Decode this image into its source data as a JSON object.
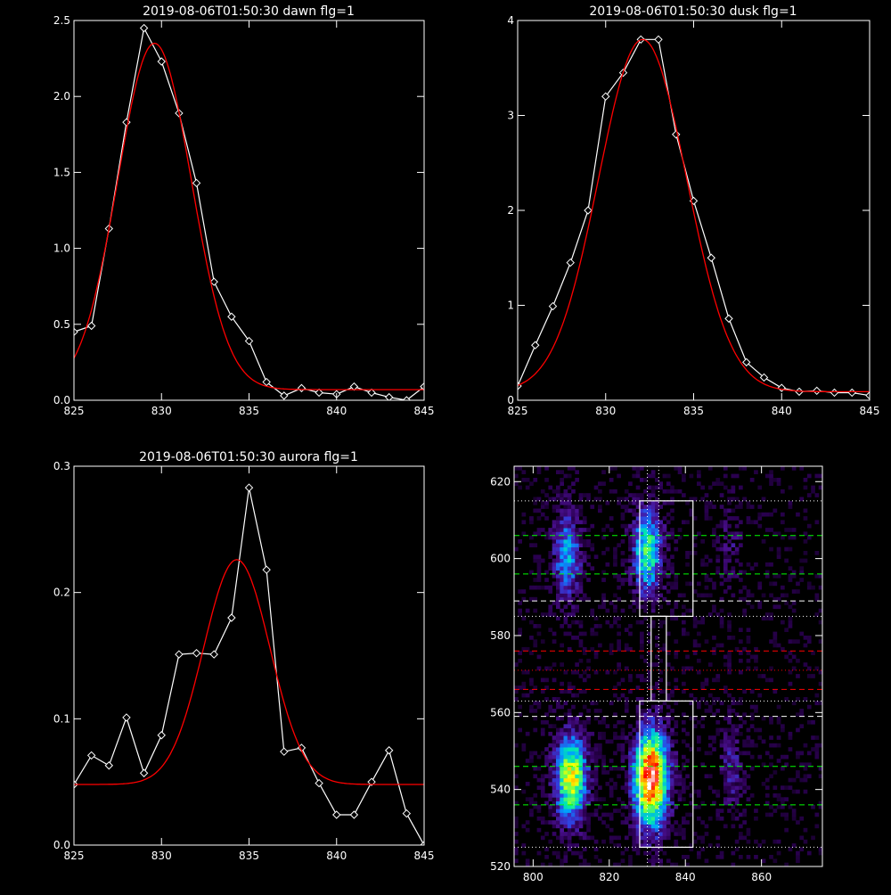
{
  "chart_data": [
    {
      "type": "line",
      "title": "2019-08-06T01:50:30 dawn flg=1",
      "xlim": [
        825,
        845
      ],
      "ylim": [
        0,
        2.5
      ],
      "x_ticks": [
        "825",
        "830",
        "835",
        "840",
        "845"
      ],
      "y_ticks": [
        "0.0",
        "0.5",
        "1.0",
        "1.5",
        "2.0",
        "2.5"
      ],
      "series": [
        {
          "role": "data",
          "color": "#ffffff",
          "marker": "diamond",
          "x": [
            825,
            826,
            827,
            828,
            829,
            830,
            831,
            832,
            833,
            834,
            835,
            836,
            837,
            838,
            839,
            840,
            841,
            842,
            843,
            844,
            845
          ],
          "y": [
            0.45,
            0.49,
            1.13,
            1.83,
            2.45,
            2.23,
            1.89,
            1.43,
            0.78,
            0.55,
            0.39,
            0.12,
            0.03,
            0.08,
            0.05,
            0.04,
            0.09,
            0.05,
            0.02,
            0.0,
            0.09
          ]
        },
        {
          "role": "fit",
          "color": "#ff0000",
          "gaussian": {
            "amp": 2.28,
            "center": 829.6,
            "sigma": 2.1,
            "offset": 0.07
          }
        }
      ]
    },
    {
      "type": "line",
      "title": "2019-08-06T01:50:30 dusk flg=1",
      "xlim": [
        825,
        845
      ],
      "ylim": [
        0,
        4
      ],
      "x_ticks": [
        "825",
        "830",
        "835",
        "840",
        "845"
      ],
      "y_ticks": [
        "0",
        "1",
        "2",
        "3",
        "4"
      ],
      "series": [
        {
          "role": "data",
          "color": "#ffffff",
          "marker": "diamond",
          "x": [
            825,
            826,
            827,
            828,
            829,
            830,
            831,
            832,
            833,
            834,
            835,
            836,
            837,
            838,
            839,
            840,
            841,
            842,
            843,
            844,
            845
          ],
          "y": [
            0.15,
            0.58,
            0.99,
            1.45,
            2.0,
            3.2,
            3.45,
            3.8,
            3.8,
            2.8,
            2.1,
            1.5,
            0.86,
            0.4,
            0.24,
            0.13,
            0.09,
            0.1,
            0.08,
            0.08,
            0.05
          ]
        },
        {
          "role": "fit",
          "color": "#ff0000",
          "gaussian": {
            "amp": 3.71,
            "center": 832.1,
            "sigma": 2.5,
            "offset": 0.09
          }
        }
      ]
    },
    {
      "type": "line",
      "title": "2019-08-06T01:50:30 aurora flg=1",
      "xlim": [
        825,
        845
      ],
      "ylim": [
        0,
        0.3
      ],
      "x_ticks": [
        "825",
        "830",
        "835",
        "840",
        "845"
      ],
      "y_ticks": [
        "0.0",
        "0.1",
        "0.2",
        "0.3"
      ],
      "series": [
        {
          "role": "data",
          "color": "#ffffff",
          "marker": "diamond",
          "x": [
            825,
            826,
            827,
            828,
            829,
            830,
            831,
            832,
            833,
            834,
            835,
            836,
            837,
            838,
            839,
            840,
            841,
            842,
            843,
            844,
            845
          ],
          "y": [
            0.048,
            0.071,
            0.063,
            0.101,
            0.057,
            0.087,
            0.151,
            0.152,
            0.151,
            0.18,
            0.283,
            0.218,
            0.074,
            0.077,
            0.049,
            0.024,
            0.024,
            0.05,
            0.075,
            0.025,
            0.0
          ]
        },
        {
          "role": "fit",
          "color": "#ff0000",
          "gaussian": {
            "amp": 0.178,
            "center": 834.3,
            "sigma": 1.9,
            "offset": 0.048
          }
        }
      ]
    },
    {
      "type": "heatmap",
      "title": "",
      "xlim": [
        795,
        876
      ],
      "ylim": [
        520,
        624
      ],
      "x_ticks": [
        "800",
        "820",
        "840",
        "860"
      ],
      "y_ticks": [
        "520",
        "540",
        "560",
        "580",
        "600",
        "620"
      ],
      "x_tick_values": [
        800,
        820,
        840,
        860
      ],
      "y_tick_values": [
        520,
        540,
        560,
        580,
        600,
        620
      ],
      "colormap": [
        "#000000",
        "#2a0050",
        "#4a1090",
        "#3040e0",
        "#00a0ff",
        "#00e8b0",
        "#80ff40",
        "#ffff00",
        "#ff8000",
        "#ff0000",
        "#ffffff"
      ],
      "blobs": [
        {
          "x": 810,
          "y": 543,
          "sx": 3.0,
          "sy": 8.0,
          "amp": 0.72
        },
        {
          "x": 809,
          "y": 601,
          "sx": 2.6,
          "sy": 8.0,
          "amp": 0.42
        },
        {
          "x": 831,
          "y": 543,
          "sx": 3.2,
          "sy": 9.0,
          "amp": 0.96
        },
        {
          "x": 830,
          "y": 602,
          "sx": 2.8,
          "sy": 8.0,
          "amp": 0.56
        },
        {
          "x": 852,
          "y": 545,
          "sx": 2.0,
          "sy": 8.0,
          "amp": 0.22
        },
        {
          "x": 852,
          "y": 604,
          "sx": 2.0,
          "sy": 7.0,
          "amp": 0.14
        }
      ],
      "boxes": [
        {
          "x0": 828,
          "x1": 842,
          "y0": 525,
          "y1": 563
        },
        {
          "x0": 828,
          "x1": 842,
          "y0": 585,
          "y1": 615
        },
        {
          "x0": 831,
          "x1": 835,
          "y0": 563,
          "y1": 585
        }
      ],
      "h_lines": [
        {
          "y": 606,
          "color": "#00ff00",
          "style": "dashed"
        },
        {
          "y": 596,
          "color": "#00ff00",
          "style": "dashed"
        },
        {
          "y": 546,
          "color": "#00ff00",
          "style": "dashed"
        },
        {
          "y": 536,
          "color": "#00ff00",
          "style": "dashed"
        },
        {
          "y": 589,
          "color": "#ffffff",
          "style": "dashed"
        },
        {
          "y": 559,
          "color": "#ffffff",
          "style": "dashed"
        },
        {
          "y": 576,
          "color": "#ff0000",
          "style": "dashed"
        },
        {
          "y": 566,
          "color": "#ff0000",
          "style": "dashed"
        },
        {
          "y": 615,
          "color": "#ffffff",
          "style": "dotted"
        },
        {
          "y": 585,
          "color": "#ffffff",
          "style": "dotted"
        },
        {
          "y": 563,
          "color": "#ffffff",
          "style": "dotted"
        },
        {
          "y": 525,
          "color": "#ffffff",
          "style": "dotted"
        },
        {
          "y": 571,
          "color": "#ff0000",
          "style": "dotted"
        }
      ],
      "v_lines": [
        {
          "x": 830,
          "color": "#ffffff",
          "style": "dotted"
        },
        {
          "x": 833,
          "color": "#ffffff",
          "style": "dotted"
        }
      ]
    }
  ]
}
